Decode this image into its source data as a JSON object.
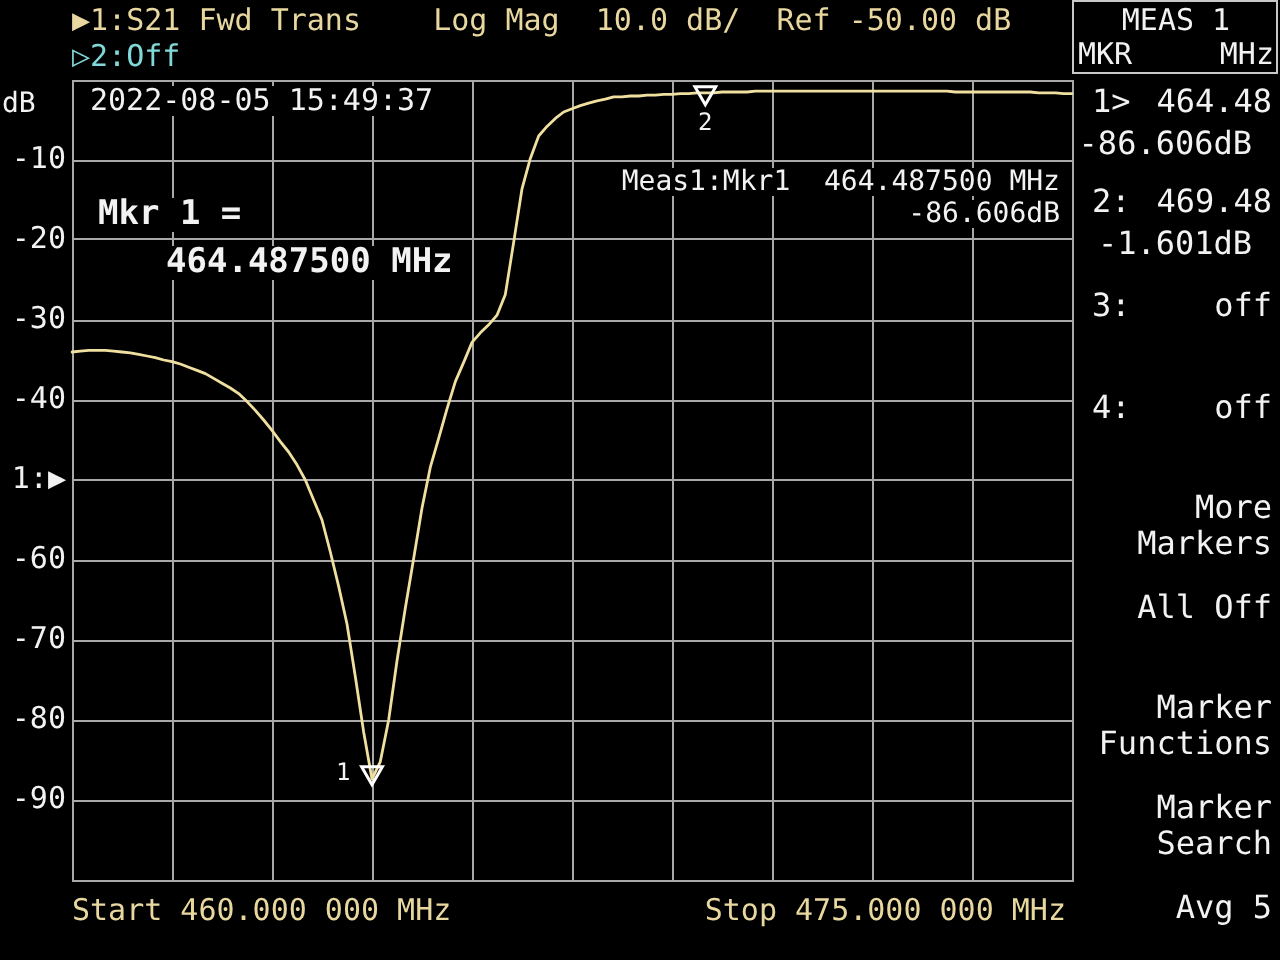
{
  "chart_data": {
    "type": "line",
    "title": "▶1:S21 Fwd Trans    Log Mag  10.0 dB/  Ref -50.00 dB",
    "subtitle": "▷2:Off",
    "ylabel": "dB",
    "categories": [
      null,
      null,
      null,
      null,
      null,
      null,
      null,
      null,
      null,
      null,
      null,
      null,
      null,
      null,
      null,
      null,
      null,
      null,
      null,
      null,
      null,
      null,
      null,
      null,
      null,
      null,
      null,
      null,
      null,
      null,
      null,
      null,
      null,
      null,
      null,
      null,
      null,
      null,
      null,
      null,
      null,
      null,
      null,
      null,
      null,
      null,
      null,
      null,
      null,
      null,
      null,
      null,
      null,
      null,
      null,
      null,
      null,
      null,
      null,
      null,
      null,
      null,
      null,
      null,
      null,
      null,
      null,
      null,
      null,
      null,
      null,
      null,
      null,
      null,
      null,
      null,
      null,
      null,
      null,
      null,
      null,
      null,
      null,
      null,
      null,
      null,
      null,
      null,
      null,
      null,
      null,
      null,
      null,
      null,
      null,
      null,
      null,
      null,
      null,
      null,
      null,
      null,
      null,
      null,
      null,
      null,
      null,
      null,
      null,
      null,
      null,
      null,
      null,
      null,
      null,
      null,
      null,
      null,
      null,
      null,
      null
    ],
    "ylim": [
      -100,
      0
    ],
    "yticks": [
      {
        "value": -100,
        "label": null
      },
      -90,
      -80,
      -70,
      -60,
      -40,
      -30,
      -20,
      -10,
      {
        "value": 0,
        "label": null
      }
    ],
    "tick_labels": "y",
    "grid": true,
    "ref_lines": [
      {
        "axis": "y",
        "value": -50,
        "label": "1:▶"
      }
    ],
    "series": [
      {
        "color": "#f0e0a0",
        "values": [
          -34.0,
          -33.9,
          -33.8,
          -33.8,
          -33.8,
          -33.9,
          -34.0,
          -34.1,
          -34.3,
          -34.5,
          -34.7,
          -35.0,
          -35.2,
          -35.5,
          -35.9,
          -36.3,
          -36.7,
          -37.3,
          -37.9,
          -38.5,
          -39.2,
          -40.2,
          -41.3,
          -42.5,
          -43.8,
          -45.2,
          -46.5,
          -48.1,
          -50.0,
          -52.5,
          -55.0,
          -59.0,
          -63.3,
          -68.0,
          -74.6,
          -81.5,
          -87.4,
          -85.2,
          -80.0,
          -72.6,
          -66.0,
          -59.8,
          -53.5,
          -48.4,
          -44.8,
          -41.1,
          -37.7,
          -35.3,
          -32.8,
          -31.6,
          -30.6,
          -29.4,
          -26.8,
          -20.3,
          -13.6,
          -9.8,
          -7.0,
          -5.8,
          -4.8,
          -4.0,
          -3.6,
          -3.2,
          -2.9,
          -2.6,
          -2.4,
          -2.1,
          -2.1,
          -2.0,
          -2.0,
          -1.9,
          -1.9,
          -1.8,
          -1.8,
          -1.7,
          -1.7,
          -1.6,
          -1.6,
          -1.6,
          -1.5,
          -1.5,
          -1.5,
          -1.5,
          -1.4,
          -1.4,
          -1.4,
          -1.4,
          -1.4,
          -1.4,
          -1.4,
          -1.4,
          -1.4,
          -1.4,
          -1.4,
          -1.4,
          -1.4,
          -1.4,
          -1.4,
          -1.4,
          -1.4,
          -1.4,
          -1.4,
          -1.4,
          -1.4,
          -1.4,
          -1.4,
          -1.4,
          -1.5,
          -1.5,
          -1.5,
          -1.5,
          -1.5,
          -1.5,
          -1.5,
          -1.5,
          -1.5,
          -1.5,
          -1.6,
          -1.6,
          -1.6,
          -1.7,
          -1.7
        ]
      },
      {
        "type": "scatter",
        "color": "#ffffff",
        "marker": "triangle",
        "values": [
          null,
          null,
          null,
          null,
          null,
          null,
          null,
          null,
          null,
          null,
          null,
          null,
          null,
          null,
          null,
          null,
          null,
          null,
          null,
          null,
          null,
          null,
          null,
          null,
          null,
          null,
          null,
          null,
          null,
          null,
          null,
          null,
          null,
          null,
          null,
          null,
          -86.606,
          null,
          null,
          null,
          null,
          null,
          null,
          null,
          null,
          null,
          null,
          null,
          null,
          null,
          null,
          null,
          null,
          null,
          null,
          null,
          null,
          null,
          null,
          null,
          null,
          null,
          null,
          null,
          null,
          null,
          null,
          null,
          null,
          null,
          null,
          null,
          null,
          null,
          null,
          null,
          -1.601,
          null,
          null,
          null,
          null,
          null,
          null,
          null,
          null,
          null,
          null,
          null,
          null,
          null,
          null,
          null,
          null,
          null,
          null,
          null,
          null,
          null,
          null,
          null,
          null,
          null,
          null,
          null,
          null,
          null,
          null,
          null,
          null,
          null,
          null,
          null,
          null,
          null,
          null,
          null,
          null,
          null,
          null,
          null,
          null
        ]
      }
    ],
    "annotations": [
      "2022-08-05 15:49:37",
      "Meas1:Mkr1  464.487500 MHz",
      "-86.606dB",
      "Mkr 1 =",
      "464.487500 MHz",
      "Start 460.000 000 MHz",
      "Stop 475.000 000 MHz",
      "MEAS 1",
      "MKR",
      "MHz",
      "1>",
      "464.48",
      "-86.606dB",
      "2:",
      "469.48",
      "-1.601dB",
      "3:",
      "off",
      "4:",
      "off",
      "More",
      "Markers",
      "All Off",
      "Marker",
      "Functions",
      "Marker",
      "Search",
      "Avg 5",
      "1",
      "2"
    ]
  }
}
